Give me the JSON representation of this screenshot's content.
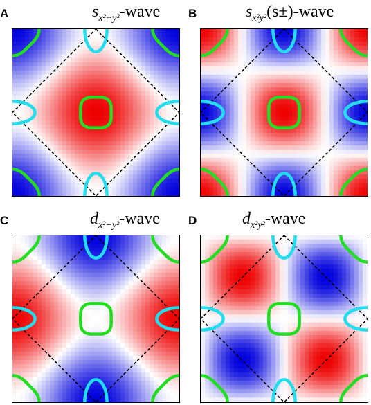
{
  "panels": [
    {
      "key": "A",
      "label": "A",
      "title_main": "s",
      "title_sub": "x²+y²",
      "title_suffix": "-wave",
      "gap_function": "cos(kx)+cos(ky)",
      "red_region": "zone center",
      "blue_region": "zone corners"
    },
    {
      "key": "B",
      "label": "B",
      "title_main": "s",
      "title_sub": "x²y²",
      "title_suffix": "(s±)-wave",
      "gap_function": "cos(kx)·cos(ky)",
      "red_region": "zone center and corners",
      "blue_region": "edge midpoints"
    },
    {
      "key": "C",
      "label": "C",
      "title_main": "d",
      "title_sub": "x²−y²",
      "title_suffix": "-wave",
      "gap_function": "cos(kx)−cos(ky)",
      "red_region": "top and bottom",
      "blue_region": "left and right"
    },
    {
      "key": "D",
      "label": "D",
      "title_main": "d",
      "title_sub": "x²y²",
      "title_suffix": "-wave",
      "gap_function": "sin(kx)·sin(ky)",
      "red_region": "upper-right and lower-left",
      "blue_region": "upper-left and lower-right"
    }
  ],
  "colors": {
    "positive": "#ee0000",
    "negative": "#0000dd",
    "zero": "#ffffff",
    "hole_pocket": "#22dd22",
    "electron_pocket": "#22ddee",
    "zone_boundary": "#000000"
  }
}
